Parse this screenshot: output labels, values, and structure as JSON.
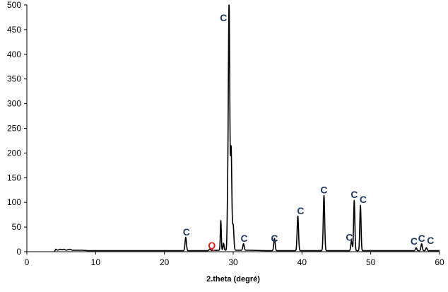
{
  "chart_data": {
    "type": "line",
    "title": "",
    "xlabel": "2.theta (degré)",
    "ylabel": "",
    "xlim": [
      0,
      60
    ],
    "ylim": [
      0,
      500
    ],
    "xticks": [
      0,
      10,
      20,
      30,
      40,
      50,
      60
    ],
    "yticks": [
      0,
      50,
      100,
      150,
      200,
      250,
      300,
      350,
      400,
      450,
      500
    ],
    "grid": false,
    "legend": "none",
    "line_color": "#000000",
    "baseline": [
      [
        4.0,
        0
      ],
      [
        4.2,
        5
      ],
      [
        4.5,
        3
      ],
      [
        4.8,
        5
      ],
      [
        5.1,
        4
      ],
      [
        5.4,
        5
      ],
      [
        5.7,
        3
      ],
      [
        6.0,
        4
      ],
      [
        6.3,
        5
      ],
      [
        6.6,
        3
      ],
      [
        7.0,
        3
      ],
      [
        7.5,
        3
      ],
      [
        8.0,
        3
      ],
      [
        9.0,
        2
      ],
      [
        10.0,
        2
      ],
      [
        12.0,
        2
      ],
      [
        15.0,
        2
      ],
      [
        18.0,
        2
      ],
      [
        20.0,
        2
      ],
      [
        22.0,
        2
      ],
      [
        26.0,
        2
      ],
      [
        28.0,
        3
      ],
      [
        32.0,
        3
      ],
      [
        35.0,
        2
      ],
      [
        38.0,
        2
      ],
      [
        42.0,
        2
      ],
      [
        45.0,
        2
      ],
      [
        50.0,
        2
      ],
      [
        55.0,
        2
      ],
      [
        58.0,
        2
      ],
      [
        59.5,
        2
      ],
      [
        60.0,
        2
      ]
    ],
    "peaks": [
      {
        "pos": 23.1,
        "height": 27,
        "width": 0.1
      },
      {
        "pos": 26.6,
        "height": 3,
        "width": 0.1
      },
      {
        "pos": 28.2,
        "height": 60,
        "width": 0.07
      },
      {
        "pos": 28.6,
        "height": 14,
        "width": 0.08
      },
      {
        "pos": 29.2,
        "height": 85,
        "width": 0.08
      },
      {
        "pos": 29.4,
        "height": 498,
        "width": 0.1
      },
      {
        "pos": 29.7,
        "height": 205,
        "width": 0.1
      },
      {
        "pos": 30.0,
        "height": 50,
        "width": 0.1
      },
      {
        "pos": 31.5,
        "height": 13,
        "width": 0.1
      },
      {
        "pos": 36.0,
        "height": 25,
        "width": 0.1
      },
      {
        "pos": 39.4,
        "height": 70,
        "width": 0.1
      },
      {
        "pos": 43.2,
        "height": 112,
        "width": 0.1
      },
      {
        "pos": 47.2,
        "height": 20,
        "width": 0.1
      },
      {
        "pos": 47.6,
        "height": 102,
        "width": 0.09
      },
      {
        "pos": 48.5,
        "height": 92,
        "width": 0.09
      },
      {
        "pos": 56.6,
        "height": 6,
        "width": 0.1
      },
      {
        "pos": 57.4,
        "height": 14,
        "width": 0.1
      },
      {
        "pos": 58.1,
        "height": 6,
        "width": 0.1
      }
    ],
    "annotations": [
      {
        "text": "C",
        "x": 23.2,
        "y": 33,
        "color": "#1f3864"
      },
      {
        "text": "Q",
        "x": 26.9,
        "y": 6,
        "color": "#e0201f"
      },
      {
        "text": "C",
        "x": 28.6,
        "y": 467,
        "color": "#1f3864"
      },
      {
        "text": "C",
        "x": 31.6,
        "y": 20,
        "color": "#1f3864"
      },
      {
        "text": "C",
        "x": 36.0,
        "y": 20,
        "color": "#1f3864"
      },
      {
        "text": "C",
        "x": 39.8,
        "y": 76,
        "color": "#1f3864"
      },
      {
        "text": "C",
        "x": 43.2,
        "y": 118,
        "color": "#1f3864"
      },
      {
        "text": "C",
        "x": 46.9,
        "y": 22,
        "color": "#1f3864"
      },
      {
        "text": "C",
        "x": 47.6,
        "y": 109,
        "color": "#1f3864"
      },
      {
        "text": "C",
        "x": 48.9,
        "y": 99,
        "color": "#1f3864"
      },
      {
        "text": "C",
        "x": 56.3,
        "y": 14,
        "color": "#1f3864"
      },
      {
        "text": "C",
        "x": 57.4,
        "y": 20,
        "color": "#1f3864"
      },
      {
        "text": "C",
        "x": 58.7,
        "y": 16,
        "color": "#1f3864"
      }
    ]
  }
}
